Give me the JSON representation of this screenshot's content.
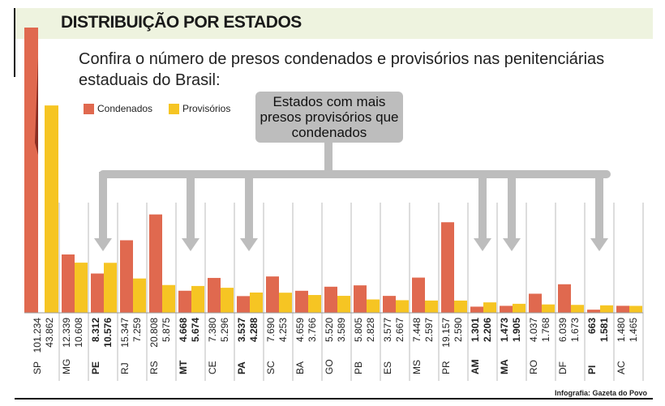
{
  "chart_data": {
    "type": "bar",
    "title": "DISTRIBUIÇÃO POR ESTADOS",
    "subtitle": "Confira o número de presos condenados e provisórios nas penitenciárias estaduais do Brasil:",
    "callout": "Estados com mais presos provisórios que condenados",
    "credit": "Infografia: Gazeta do Povo",
    "categories": [
      "SP",
      "MG",
      "PE",
      "RJ",
      "RS",
      "MT",
      "CE",
      "PA",
      "SC",
      "BA",
      "GO",
      "PB",
      "ES",
      "MS",
      "PR",
      "AM",
      "MA",
      "RO",
      "DF",
      "PI",
      "AC"
    ],
    "highlight": [
      false,
      false,
      true,
      false,
      false,
      true,
      false,
      true,
      false,
      false,
      false,
      false,
      false,
      false,
      false,
      true,
      true,
      false,
      false,
      true,
      false
    ],
    "series": [
      {
        "name": "Condenados",
        "color": "#e0694f",
        "values": [
          101234,
          12339,
          8312,
          15347,
          20808,
          4668,
          7380,
          3537,
          7690,
          4659,
          5520,
          5805,
          3577,
          7448,
          19157,
          1301,
          1473,
          4037,
          6039,
          663,
          1480
        ],
        "value_labels": [
          "101.234",
          "12.339",
          "8.312",
          "15.347",
          "20.808",
          "4.668",
          "7.380",
          "3.537",
          "7.690",
          "4.659",
          "5.520",
          "5.805",
          "3.577",
          "7.448",
          "19.157",
          "1.301",
          "1.473",
          "4.037",
          "6.039",
          "663",
          "1.480"
        ]
      },
      {
        "name": "Provisórios",
        "color": "#f6c523",
        "values": [
          43862,
          10608,
          10576,
          7259,
          5875,
          5674,
          5296,
          4288,
          4253,
          3766,
          3589,
          2828,
          2667,
          2597,
          2590,
          2206,
          1905,
          1768,
          1673,
          1581,
          1465
        ],
        "value_labels": [
          "43.862",
          "10.608",
          "10.576",
          "7.259",
          "5.875",
          "5.674",
          "5.296",
          "4.288",
          "4.253",
          "3.766",
          "3.589",
          "2.828",
          "2.667",
          "2.597",
          "2.590",
          "2.206",
          "1.905",
          "1.768",
          "1.673",
          "1.581",
          "1.465"
        ]
      }
    ],
    "ylim": [
      0,
      60000
    ],
    "legend": "top-left"
  }
}
